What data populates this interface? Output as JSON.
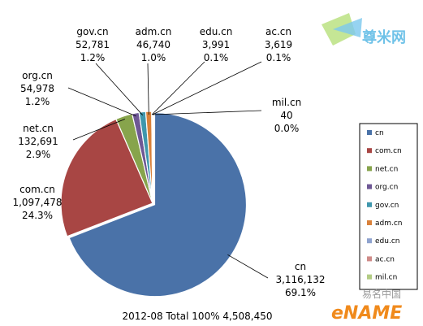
{
  "chart_data": {
    "type": "pie",
    "caption": "2012-08 Total 100%  4,508,450",
    "slices": [
      {
        "name": "cn",
        "value": 3116132,
        "value_text": "3,116,132",
        "percent": 69.1,
        "percent_text": "69.1%",
        "color": "#4a72a8"
      },
      {
        "name": "com.cn",
        "value": 1097478,
        "value_text": "1,097,478",
        "percent": 24.3,
        "percent_text": "24.3%",
        "color": "#a84644"
      },
      {
        "name": "net.cn",
        "value": 132691,
        "value_text": "132,691",
        "percent": 2.9,
        "percent_text": "2.9%",
        "color": "#87a44c"
      },
      {
        "name": "org.cn",
        "value": 54978,
        "value_text": "54,978",
        "percent": 1.2,
        "percent_text": "1.2%",
        "color": "#6e5895"
      },
      {
        "name": "gov.cn",
        "value": 52781,
        "value_text": "52,781",
        "percent": 1.2,
        "percent_text": "1.2%",
        "color": "#3f97ad"
      },
      {
        "name": "adm.cn",
        "value": 46740,
        "value_text": "46,740",
        "percent": 1.0,
        "percent_text": "1.0%",
        "color": "#d9813a"
      },
      {
        "name": "edu.cn",
        "value": 3991,
        "value_text": "3,991",
        "percent": 0.1,
        "percent_text": "0.1%",
        "color": "#8fa3cf"
      },
      {
        "name": "ac.cn",
        "value": 3619,
        "value_text": "3,619",
        "percent": 0.1,
        "percent_text": "0.1%",
        "color": "#cf8b88"
      },
      {
        "name": "mil.cn",
        "value": 40,
        "value_text": "40",
        "percent": 0.0,
        "percent_text": "0.0%",
        "color": "#b3cc84"
      }
    ],
    "legend": {
      "position": "right"
    }
  },
  "watermarks": {
    "top_right": "尊米网",
    "bottom_right_cn": "易名中国",
    "bottom_right_en": "eNAME"
  }
}
